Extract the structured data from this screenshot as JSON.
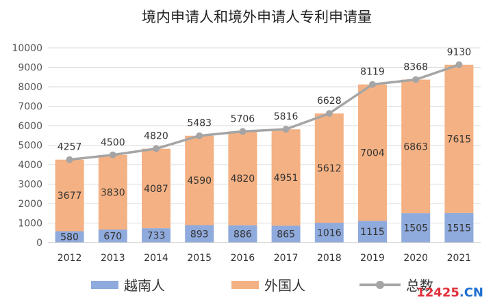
{
  "chart_data": {
    "type": "bar",
    "stacked": true,
    "title": "境内申请人和境外申请人专利申请量",
    "categories": [
      "2012",
      "2013",
      "2014",
      "2015",
      "2016",
      "2017",
      "2018",
      "2019",
      "2020",
      "2021"
    ],
    "series": [
      {
        "name": "越南人",
        "kind": "bar",
        "color": "#8faadc",
        "values": [
          580,
          670,
          733,
          893,
          886,
          865,
          1016,
          1115,
          1505,
          1515
        ]
      },
      {
        "name": "外国人",
        "kind": "bar",
        "color": "#f4b183",
        "values": [
          3677,
          3830,
          4087,
          4590,
          4820,
          4951,
          5612,
          7004,
          6863,
          7615
        ]
      },
      {
        "name": "总数",
        "kind": "line",
        "color": "#a5a5a5",
        "values": [
          4257,
          4500,
          4820,
          5483,
          5706,
          5816,
          6628,
          8119,
          8368,
          9130
        ]
      }
    ],
    "yticks": [
      "0",
      "1000",
      "2000",
      "3000",
      "4000",
      "5000",
      "6000",
      "7000",
      "8000",
      "9000",
      "10000"
    ],
    "ylim": [
      0,
      10000
    ],
    "grid": true,
    "legend_position": "bottom"
  },
  "watermark": {
    "part_a": "12425",
    "part_b": ".CN"
  }
}
